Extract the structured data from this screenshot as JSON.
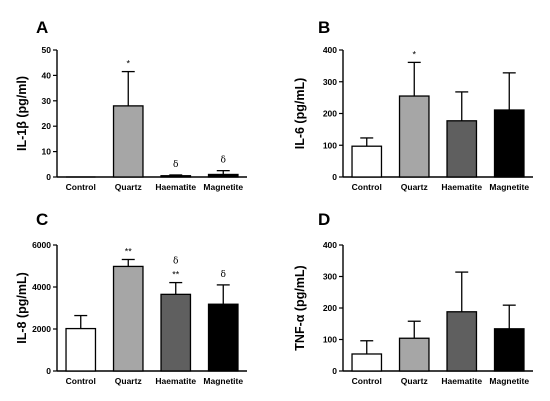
{
  "colors": {
    "Control": "#ffffff",
    "Quartz": "#a6a6a6",
    "Haematite": "#5f5f5f",
    "Magnetite": "#000000",
    "stroke": "#000000"
  },
  "chart_data": [
    {
      "type": "bar",
      "panel": "A",
      "ylabel": "IL-1β (pg/ml)",
      "categories": [
        "Control",
        "Quartz",
        "Haematite",
        "Magnetite"
      ],
      "values": [
        0,
        28,
        0.5,
        1
      ],
      "errors": [
        0,
        13.5,
        0.3,
        1.5
      ],
      "annotations": [
        [],
        [
          "*"
        ],
        [
          "δ"
        ],
        [
          "δ"
        ]
      ],
      "ylim": [
        0,
        50
      ],
      "yticks": [
        "0",
        "10",
        "20",
        "30",
        "40",
        "50"
      ],
      "grid": false
    },
    {
      "type": "bar",
      "panel": "B",
      "ylabel": "IL-6 (pg/mL)",
      "categories": [
        "Control",
        "Quartz",
        "Haematite",
        "Magnetite"
      ],
      "values": [
        97,
        255,
        177,
        211
      ],
      "errors": [
        26,
        106,
        91,
        117
      ],
      "annotations": [
        [],
        [
          "*"
        ],
        [],
        []
      ],
      "ylim": [
        0,
        400
      ],
      "yticks": [
        "0",
        "100",
        "200",
        "300",
        "400"
      ],
      "grid": false
    },
    {
      "type": "bar",
      "panel": "C",
      "ylabel": "IL-8 (pg/mL)",
      "categories": [
        "Control",
        "Quartz",
        "Haematite",
        "Magnetite"
      ],
      "values": [
        2020,
        4980,
        3650,
        3180
      ],
      "errors": [
        620,
        330,
        560,
        920
      ],
      "annotations": [
        [],
        [
          "**"
        ],
        [
          "δ",
          "**"
        ],
        [
          "δ"
        ]
      ],
      "ylim": [
        0,
        6000
      ],
      "yticks": [
        "0",
        "2000",
        "4000",
        "6000"
      ],
      "grid": false
    },
    {
      "type": "bar",
      "panel": "D",
      "ylabel": "TNF-α (pg/mL)",
      "categories": [
        "Control",
        "Quartz",
        "Haematite",
        "Magnetite"
      ],
      "values": [
        54,
        104,
        188,
        134
      ],
      "errors": [
        42,
        54,
        126,
        75
      ],
      "annotations": [
        [],
        [],
        [],
        []
      ],
      "ylim": [
        0,
        400
      ],
      "yticks": [
        "0",
        "100",
        "200",
        "300",
        "400"
      ],
      "grid": false
    }
  ]
}
